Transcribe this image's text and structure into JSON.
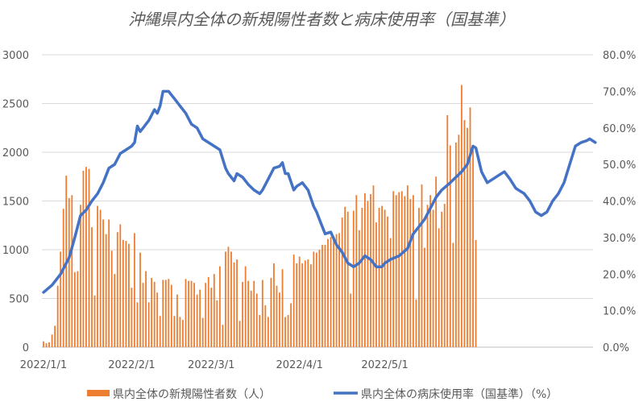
{
  "chart_data": {
    "type": "bar+line",
    "title": "沖縄県内全体の新規陽性者数と病床使用率（国基準）",
    "x_tick_labels": [
      "2022/1/1",
      "2022/2/1",
      "2022/3/1",
      "2022/4/1",
      "2022/5/1"
    ],
    "y_left": {
      "min": 0,
      "max": 3000,
      "ticks": [
        0,
        500,
        1000,
        1500,
        2000,
        2500,
        3000
      ],
      "tick_labels": [
        "0",
        "500",
        "1000",
        "1500",
        "2000",
        "2500",
        "3000"
      ]
    },
    "y_right": {
      "min": 0,
      "max": 80,
      "ticks": [
        0,
        10,
        20,
        30,
        40,
        50,
        60,
        70,
        80
      ],
      "tick_labels": [
        "0.0%",
        "10.0%",
        "20.0%",
        "30.0%",
        "40.0%",
        "50.0%",
        "60.0%",
        "70.0%",
        "80.0%"
      ]
    },
    "start_date": "2022-01-01",
    "grid": true,
    "legend_position": "bottom",
    "series": [
      {
        "name": "県内全体の新規陽性者数（人）",
        "type": "bar",
        "color": "#ED7D31",
        "values": [
          60,
          40,
          50,
          130,
          220,
          630,
          980,
          1420,
          1760,
          1530,
          1560,
          770,
          780,
          1460,
          1810,
          1850,
          1830,
          1230,
          530,
          1450,
          1410,
          1310,
          1160,
          1310,
          990,
          750,
          1180,
          1260,
          1100,
          1090,
          1060,
          610,
          1170,
          460,
          970,
          660,
          780,
          460,
          710,
          670,
          560,
          320,
          690,
          690,
          700,
          640,
          320,
          540,
          310,
          280,
          700,
          680,
          680,
          660,
          540,
          590,
          300,
          660,
          720,
          610,
          750,
          480,
          830,
          230,
          980,
          1030,
          980,
          870,
          900,
          270,
          670,
          830,
          680,
          580,
          680,
          550,
          330,
          690,
          430,
          310,
          710,
          860,
          630,
          560,
          800,
          310,
          330,
          450,
          950,
          860,
          930,
          860,
          890,
          900,
          850,
          980,
          970,
          1000,
          1050,
          1050,
          1110,
          1130,
          1130,
          1160,
          1170,
          1330,
          1440,
          1390,
          550,
          1400,
          1560,
          1200,
          1430,
          1580,
          1500,
          1570,
          1660,
          1280,
          1430,
          1450,
          1410,
          1340,
          1120,
          1600,
          1560,
          1590,
          1600,
          1550,
          1660,
          1520,
          1560,
          490,
          1430,
          1670,
          1020,
          1460,
          1560,
          1410,
          1750,
          1220,
          1390,
          1470,
          2380,
          2070,
          1070,
          2100,
          2180,
          2690,
          2330,
          2250,
          2460,
          2040,
          1100
        ]
      },
      {
        "name": "県内全体の病床使用率（国基準）（%）",
        "type": "line",
        "color": "#4472C4",
        "points": [
          [
            0,
            15
          ],
          [
            3,
            17
          ],
          [
            6,
            20
          ],
          [
            9,
            24.5
          ],
          [
            11,
            30
          ],
          [
            13,
            36
          ],
          [
            15,
            37.5
          ],
          [
            17,
            40
          ],
          [
            19,
            42
          ],
          [
            21,
            45
          ],
          [
            23,
            49
          ],
          [
            25,
            50
          ],
          [
            27,
            53
          ],
          [
            29,
            54
          ],
          [
            31,
            55
          ],
          [
            32,
            56
          ],
          [
            33,
            60.5
          ],
          [
            34,
            59
          ],
          [
            35,
            60
          ],
          [
            36,
            61
          ],
          [
            37,
            62
          ],
          [
            39,
            65
          ],
          [
            40,
            64
          ],
          [
            41,
            66
          ],
          [
            42,
            70
          ],
          [
            44,
            70
          ],
          [
            45,
            69
          ],
          [
            46,
            68
          ],
          [
            48,
            66
          ],
          [
            50,
            64
          ],
          [
            52,
            61
          ],
          [
            54,
            60
          ],
          [
            56,
            57
          ],
          [
            58,
            56
          ],
          [
            60,
            55
          ],
          [
            62,
            54
          ],
          [
            64,
            49
          ],
          [
            65,
            47.5
          ],
          [
            67,
            45.5
          ],
          [
            68,
            47.5
          ],
          [
            70,
            46.5
          ],
          [
            72,
            44.5
          ],
          [
            74,
            43
          ],
          [
            76,
            42
          ],
          [
            77,
            43
          ],
          [
            79,
            46
          ],
          [
            81,
            49
          ],
          [
            83,
            49.5
          ],
          [
            84,
            50.5
          ],
          [
            85,
            47.5
          ],
          [
            86,
            47.5
          ],
          [
            88,
            43
          ],
          [
            89,
            44
          ],
          [
            91,
            45
          ],
          [
            93,
            43
          ],
          [
            95,
            38.5
          ],
          [
            96,
            37
          ],
          [
            97,
            35
          ],
          [
            99,
            31
          ],
          [
            101,
            31.5
          ],
          [
            103,
            28
          ],
          [
            105,
            26
          ],
          [
            107,
            23
          ],
          [
            109,
            22
          ],
          [
            111,
            23
          ],
          [
            113,
            25
          ],
          [
            115,
            24
          ],
          [
            117,
            22
          ],
          [
            119,
            22
          ],
          [
            120,
            23
          ],
          [
            122,
            24
          ],
          [
            125,
            25
          ],
          [
            128,
            27
          ],
          [
            130,
            31
          ],
          [
            132,
            33
          ],
          [
            134,
            35
          ],
          [
            136,
            38
          ],
          [
            138,
            41
          ],
          [
            140,
            43
          ],
          [
            143,
            45
          ],
          [
            145,
            46.5
          ],
          [
            147,
            48
          ],
          [
            149,
            50
          ],
          [
            151,
            55
          ],
          [
            152,
            54.5
          ],
          [
            154,
            48
          ],
          [
            156,
            45
          ],
          [
            158,
            46
          ],
          [
            160,
            47
          ],
          [
            162,
            48
          ],
          [
            163,
            47
          ],
          [
            164,
            46
          ],
          [
            166,
            43.5
          ],
          [
            167,
            43
          ],
          [
            169,
            42
          ],
          [
            171,
            40
          ],
          [
            173,
            37
          ],
          [
            175,
            36
          ],
          [
            177,
            37
          ],
          [
            179,
            40
          ],
          [
            181,
            42
          ],
          [
            183,
            45
          ],
          [
            185,
            50
          ],
          [
            187,
            55
          ],
          [
            189,
            56
          ],
          [
            191,
            56.5
          ],
          [
            192,
            57
          ],
          [
            194,
            56
          ]
        ]
      }
    ]
  }
}
